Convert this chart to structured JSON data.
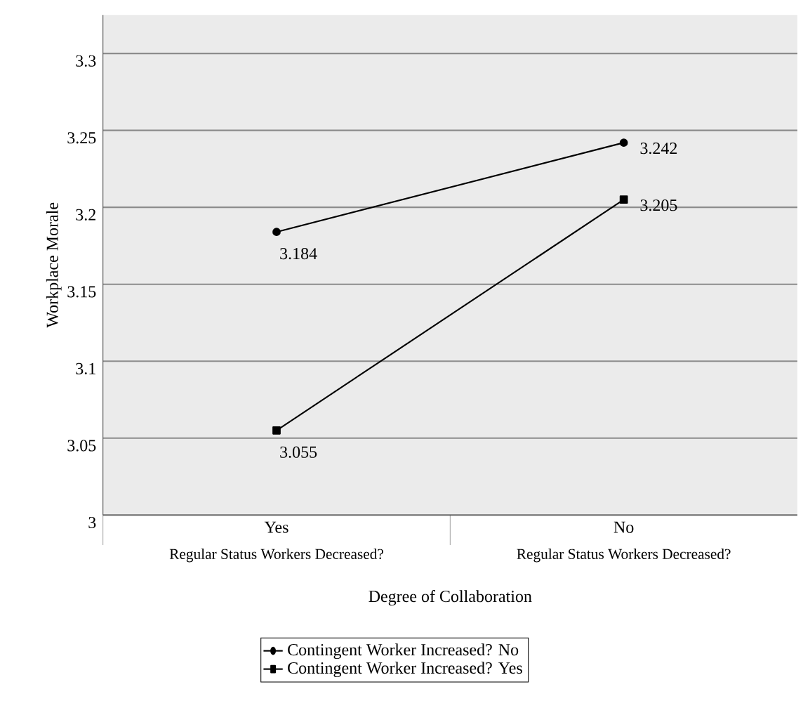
{
  "chart_data": {
    "type": "line",
    "xlabel": "Degree of Collaboration",
    "ylabel": "Workplace Morale",
    "categories": [
      "Yes",
      "No"
    ],
    "annotations": [
      "Regular Status Workers Decreased?",
      "Regular Status Workers Decreased?"
    ],
    "series": [
      {
        "name": "Contingent Worker Increased? No",
        "color": "#000000",
        "marker": "circle",
        "values": [
          3.184,
          3.242
        ]
      },
      {
        "name": "Contingent Worker Increased? Yes",
        "color": "#000000",
        "marker": "square",
        "values": [
          3.055,
          3.205
        ]
      }
    ],
    "ylim": [
      3,
      3.325
    ],
    "yticks": [
      3,
      3.05,
      3.1,
      3.15,
      3.2,
      3.25,
      3.3
    ],
    "grid": "y",
    "legend": "bottom",
    "line_style": "solid",
    "data_labels": true
  }
}
